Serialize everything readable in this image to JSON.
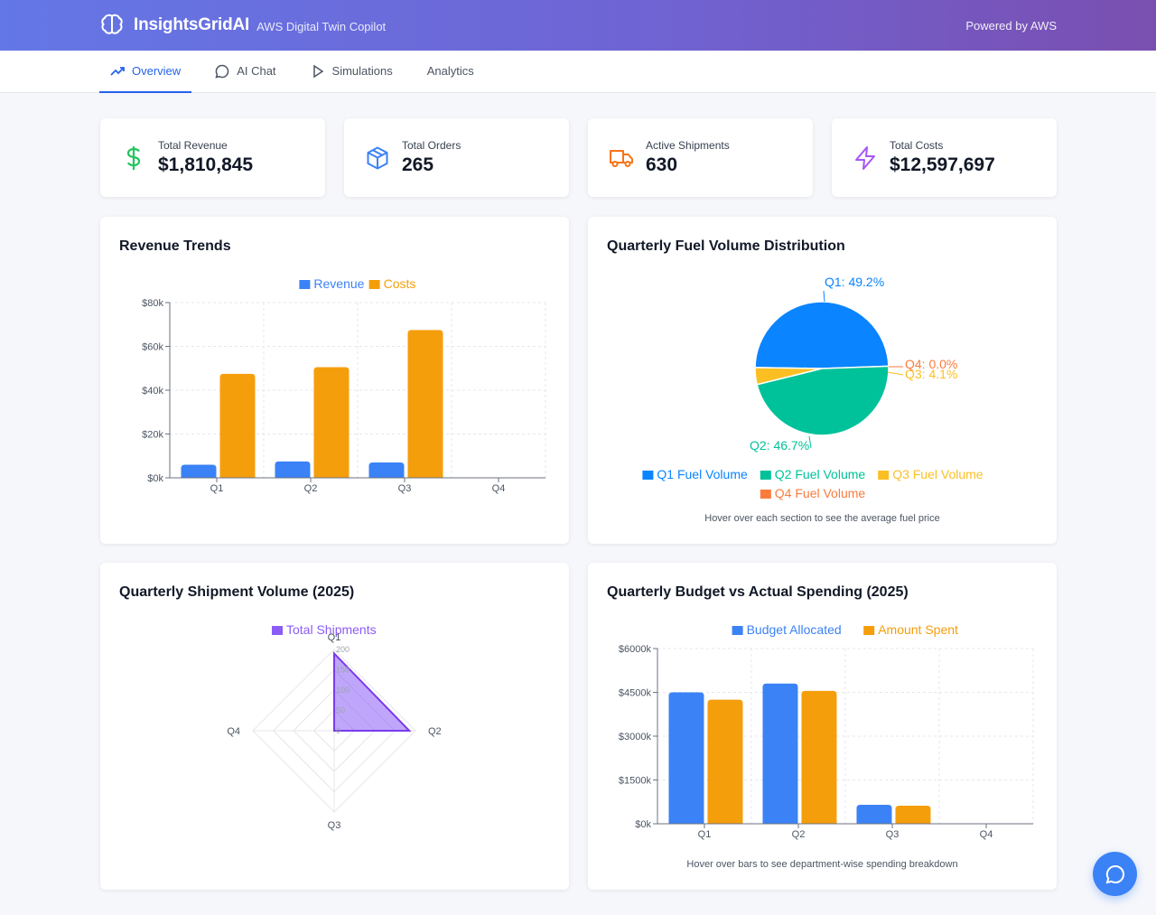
{
  "header": {
    "brand": "InsightsGridAI",
    "subtitle": "AWS Digital Twin Copilot",
    "powered": "Powered by AWS"
  },
  "nav": {
    "tabs": [
      {
        "label": "Overview",
        "icon": "trend-icon"
      },
      {
        "label": "AI Chat",
        "icon": "chat-icon"
      },
      {
        "label": "Simulations",
        "icon": "play-icon"
      },
      {
        "label": "Analytics",
        "icon": ""
      }
    ],
    "active": 0
  },
  "stats": [
    {
      "label": "Total Revenue",
      "value": "$1,810,845",
      "icon": "dollar-icon",
      "color": "#22c55e"
    },
    {
      "label": "Total Orders",
      "value": "265",
      "icon": "box-icon",
      "color": "#3b82f6"
    },
    {
      "label": "Active Shipments",
      "value": "630",
      "icon": "truck-icon",
      "color": "#f97316"
    },
    {
      "label": "Total Costs",
      "value": "$12,597,697",
      "icon": "bolt-icon",
      "color": "#a855f7"
    }
  ],
  "panels": {
    "revenue": {
      "title": "Revenue Trends"
    },
    "fuel": {
      "title": "Quarterly Fuel Volume Distribution",
      "note": "Hover over each section to see the average fuel price"
    },
    "shipments": {
      "title": "Quarterly Shipment Volume (2025)"
    },
    "budget": {
      "title": "Quarterly Budget vs Actual Spending (2025)",
      "note": "Hover over bars to see department-wise spending breakdown"
    }
  },
  "colors": {
    "blue": "#3b82f6",
    "orange": "#f59e0b",
    "purple": "#8b5cf6",
    "pieBlue": "#0a84ff",
    "pieGreen": "#00c29a",
    "pieYellow": "#fbbf24",
    "pieOrange": "#fb7b3d"
  },
  "chart_data": [
    {
      "id": "revenue",
      "type": "bar",
      "title": "Revenue Trends",
      "categories": [
        "Q1",
        "Q2",
        "Q3",
        "Q4"
      ],
      "series": [
        {
          "name": "Revenue",
          "values": [
            6000,
            7500,
            7000,
            0
          ]
        },
        {
          "name": "Costs",
          "values": [
            47500,
            50500,
            67500,
            0
          ]
        }
      ],
      "ylim": [
        0,
        80000
      ],
      "yticks": [
        "$0k",
        "$20k",
        "$40k",
        "$60k",
        "$80k"
      ]
    },
    {
      "id": "fuel",
      "type": "pie",
      "title": "Quarterly Fuel Volume Distribution",
      "labels": [
        "Q1 Fuel Volume",
        "Q2 Fuel Volume",
        "Q3 Fuel Volume",
        "Q4 Fuel Volume"
      ],
      "values": [
        49.2,
        46.7,
        4.1,
        0.0
      ],
      "data_labels": [
        "Q1: 49.2%",
        "Q2: 46.7%",
        "Q3: 4.1%",
        "Q4: 0.0%"
      ]
    },
    {
      "id": "shipments",
      "type": "radar",
      "title": "Quarterly Shipment Volume (2025)",
      "categories": [
        "Q1",
        "Q2",
        "Q3",
        "Q4"
      ],
      "series": [
        {
          "name": "Total Shipments",
          "values": [
            190,
            185,
            0,
            0
          ]
        }
      ],
      "rlim": [
        0,
        200
      ],
      "rticks": [
        "0",
        "50",
        "100",
        "150",
        "200"
      ]
    },
    {
      "id": "budget",
      "type": "bar",
      "title": "Quarterly Budget vs Actual Spending (2025)",
      "categories": [
        "Q1",
        "Q2",
        "Q3",
        "Q4"
      ],
      "series": [
        {
          "name": "Budget Allocated",
          "values": [
            4500,
            4800,
            650,
            0
          ]
        },
        {
          "name": "Amount Spent",
          "values": [
            4250,
            4550,
            620,
            0
          ]
        }
      ],
      "ylim": [
        0,
        6000
      ],
      "yticks": [
        "$0k",
        "$1500k",
        "$3000k",
        "$4500k",
        "$6000k"
      ]
    }
  ]
}
